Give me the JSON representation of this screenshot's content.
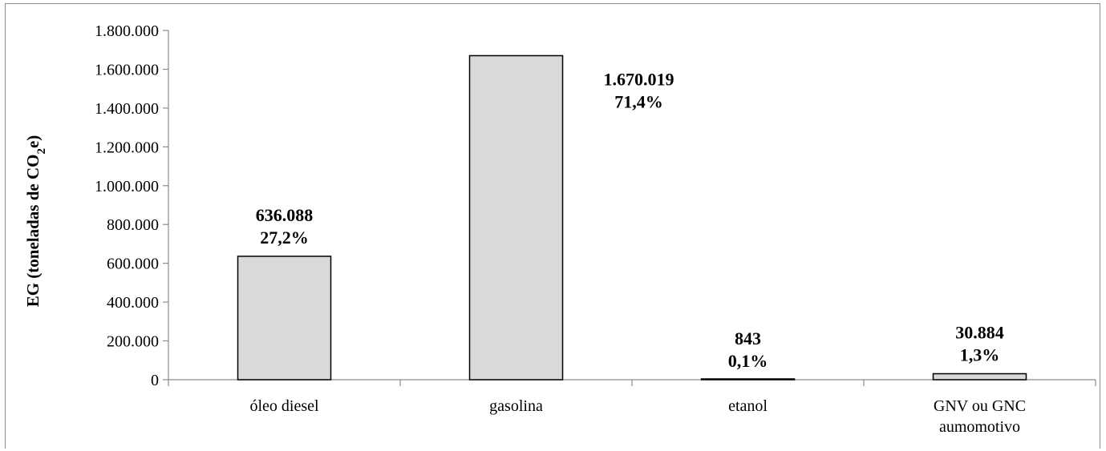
{
  "chart_data": {
    "type": "bar",
    "title": "",
    "xlabel": "",
    "ylabel": {
      "main": "EG (toneladas de CO",
      "sub": "2",
      "end": "e)"
    },
    "categories": [
      [
        "óleo diesel"
      ],
      [
        "gasolina"
      ],
      [
        "etanol"
      ],
      [
        "GNV ou GNC",
        "aumomotivo"
      ]
    ],
    "values": [
      636088,
      1670019,
      843,
      30884
    ],
    "value_labels": [
      "636.088",
      "1.670.019",
      "843",
      "30.884"
    ],
    "percent_labels": [
      "27,2%",
      "71,4%",
      "0,1%",
      "1,3%"
    ],
    "ylim": [
      0,
      1800000
    ],
    "y_ticks": [
      {
        "value": 0,
        "label": "0"
      },
      {
        "value": 200000,
        "label": "200.000"
      },
      {
        "value": 400000,
        "label": "400.000"
      },
      {
        "value": 600000,
        "label": "600.000"
      },
      {
        "value": 800000,
        "label": "800.000"
      },
      {
        "value": 1000000,
        "label": "1.000.000"
      },
      {
        "value": 1200000,
        "label": "1.200.000"
      },
      {
        "value": 1400000,
        "label": "1.400.000"
      },
      {
        "value": 1600000,
        "label": "1.600.000"
      },
      {
        "value": 1800000,
        "label": "1.800.000"
      }
    ],
    "grid": false,
    "legend": "none",
    "colors": {
      "bar_fill": "#d9d9d9",
      "bar_stroke": "#000000",
      "axis": "#8c8c8c",
      "text": "#000000"
    }
  }
}
